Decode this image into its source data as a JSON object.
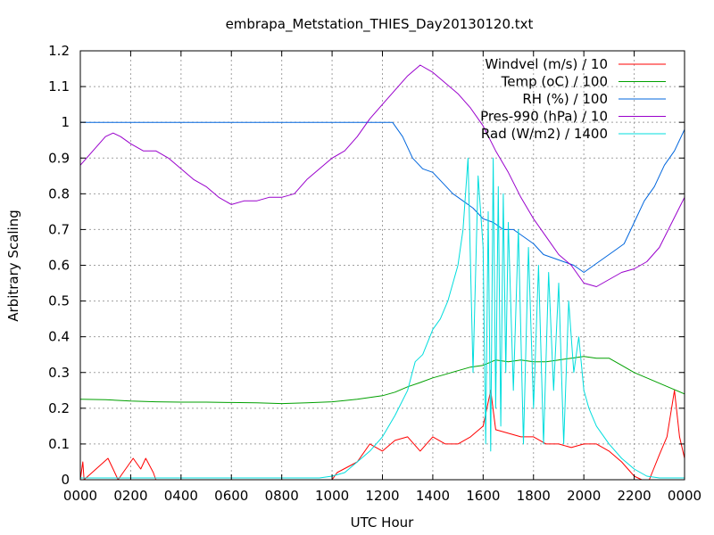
{
  "chart_data": {
    "type": "line",
    "title": "embrapa_Metstation_THIES_Day20130120.txt",
    "xlabel": "UTC Hour",
    "ylabel": "Arbitrary Scaling",
    "xlim": [
      0,
      24
    ],
    "ylim": [
      0,
      1.2
    ],
    "x_ticks": [
      0,
      2,
      4,
      6,
      8,
      10,
      12,
      14,
      16,
      18,
      20,
      22,
      24
    ],
    "x_tick_labels": [
      "0000",
      "0200",
      "0400",
      "0600",
      "0800",
      "1000",
      "1200",
      "1400",
      "1600",
      "1800",
      "2000",
      "2200",
      "0000"
    ],
    "y_ticks": [
      0,
      0.1,
      0.2,
      0.3,
      0.4,
      0.5,
      0.6,
      0.7,
      0.8,
      0.9,
      1,
      1.1,
      1.2
    ],
    "y_tick_labels": [
      "0",
      "0.1",
      "0.2",
      "0.3",
      "0.4",
      "0.5",
      "0.6",
      "0.7",
      "0.8",
      "0.9",
      "1",
      "1.1",
      "1.2"
    ],
    "grid": true,
    "legend_position": "top-right",
    "series": [
      {
        "name": "Windvel (m/s) / 10",
        "color": "#ff0000",
        "x": [
          0,
          0.1,
          0.15,
          1.1,
          1.3,
          1.5,
          2.1,
          2.4,
          2.6,
          2.9,
          3.0,
          5.6,
          5.7,
          9.0,
          10.0,
          10.2,
          11.0,
          11.5,
          12.0,
          12.5,
          13.0,
          13.5,
          14.0,
          14.5,
          15.0,
          15.5,
          16.0,
          16.3,
          16.5,
          17.0,
          17.5,
          18.0,
          18.5,
          19.0,
          19.5,
          20.0,
          20.5,
          21.0,
          21.5,
          22.0,
          22.3,
          22.6,
          23.0,
          23.3,
          23.6,
          23.8,
          24.0
        ],
        "y": [
          0.0,
          0.05,
          0.0,
          0.06,
          0.03,
          0.0,
          0.06,
          0.03,
          0.06,
          0.02,
          0.0,
          0.0,
          0.0,
          0.0,
          0.0,
          0.02,
          0.05,
          0.1,
          0.08,
          0.11,
          0.12,
          0.08,
          0.12,
          0.1,
          0.1,
          0.12,
          0.15,
          0.25,
          0.14,
          0.13,
          0.12,
          0.12,
          0.1,
          0.1,
          0.09,
          0.1,
          0.1,
          0.08,
          0.05,
          0.01,
          0.0,
          0.0,
          0.07,
          0.12,
          0.25,
          0.12,
          0.06
        ]
      },
      {
        "name": "Temp (oC) / 100",
        "color": "#00a000",
        "x": [
          0,
          1,
          2,
          3,
          4,
          5,
          6,
          7,
          8,
          9,
          10,
          11,
          12,
          12.5,
          13,
          13.5,
          14,
          14.5,
          15,
          15.5,
          16,
          16.5,
          17,
          17.5,
          18,
          18.5,
          19,
          19.5,
          20,
          20.5,
          21,
          21.5,
          22,
          22.5,
          23,
          23.5,
          24
        ],
        "y": [
          0.225,
          0.224,
          0.22,
          0.218,
          0.217,
          0.217,
          0.216,
          0.215,
          0.213,
          0.215,
          0.218,
          0.225,
          0.235,
          0.245,
          0.26,
          0.272,
          0.285,
          0.295,
          0.305,
          0.315,
          0.32,
          0.335,
          0.33,
          0.335,
          0.33,
          0.33,
          0.335,
          0.34,
          0.345,
          0.34,
          0.34,
          0.32,
          0.3,
          0.285,
          0.27,
          0.255,
          0.24
        ]
      },
      {
        "name": "RH (%) / 100",
        "color": "#0066dd",
        "x": [
          0,
          2,
          4,
          6,
          8,
          10,
          12,
          12.4,
          12.8,
          13.2,
          13.6,
          14.0,
          14.4,
          14.8,
          15.2,
          15.6,
          16.0,
          16.4,
          16.8,
          17.2,
          17.6,
          18.0,
          18.4,
          18.8,
          19.2,
          19.6,
          20.0,
          20.4,
          20.8,
          21.2,
          21.6,
          22.0,
          22.4,
          22.8,
          23.2,
          23.6,
          24.0
        ],
        "y": [
          1.0,
          1.0,
          1.0,
          1.0,
          1.0,
          1.0,
          1.0,
          1.0,
          0.96,
          0.9,
          0.87,
          0.86,
          0.83,
          0.8,
          0.78,
          0.76,
          0.73,
          0.72,
          0.7,
          0.7,
          0.68,
          0.66,
          0.63,
          0.62,
          0.61,
          0.6,
          0.58,
          0.6,
          0.62,
          0.64,
          0.66,
          0.72,
          0.78,
          0.82,
          0.88,
          0.92,
          0.98
        ]
      },
      {
        "name": "Pres-990 (hPa) / 10",
        "color": "#9900cc",
        "x": [
          0,
          0.5,
          1.0,
          1.3,
          1.6,
          2.0,
          2.5,
          3.0,
          3.5,
          4.0,
          4.5,
          5.0,
          5.5,
          6.0,
          6.5,
          7.0,
          7.5,
          8.0,
          8.5,
          9.0,
          9.5,
          10.0,
          10.5,
          11.0,
          11.5,
          12.0,
          12.5,
          13.0,
          13.5,
          14.0,
          14.5,
          15.0,
          15.5,
          16.0,
          16.5,
          17.0,
          17.5,
          18.0,
          18.5,
          19.0,
          19.5,
          20.0,
          20.5,
          21.0,
          21.5,
          22.0,
          22.5,
          23.0,
          23.5,
          24.0
        ],
        "y": [
          0.88,
          0.92,
          0.96,
          0.97,
          0.96,
          0.94,
          0.92,
          0.92,
          0.9,
          0.87,
          0.84,
          0.82,
          0.79,
          0.77,
          0.78,
          0.78,
          0.79,
          0.79,
          0.8,
          0.84,
          0.87,
          0.9,
          0.92,
          0.96,
          1.01,
          1.05,
          1.09,
          1.13,
          1.16,
          1.14,
          1.11,
          1.08,
          1.04,
          0.99,
          0.92,
          0.86,
          0.79,
          0.73,
          0.68,
          0.63,
          0.6,
          0.55,
          0.54,
          0.56,
          0.58,
          0.59,
          0.61,
          0.65,
          0.72,
          0.79
        ]
      },
      {
        "name": "Rad (W/m2) / 1400",
        "color": "#00dddd",
        "x": [
          0,
          2,
          4,
          6,
          8,
          9.5,
          10.0,
          10.5,
          11.0,
          11.5,
          12.0,
          12.5,
          13.0,
          13.3,
          13.6,
          14.0,
          14.3,
          14.6,
          15.0,
          15.2,
          15.4,
          15.6,
          15.8,
          16.0,
          16.1,
          16.2,
          16.3,
          16.4,
          16.5,
          16.6,
          16.7,
          16.8,
          16.9,
          17.0,
          17.2,
          17.4,
          17.6,
          17.8,
          18.0,
          18.2,
          18.4,
          18.6,
          18.8,
          19.0,
          19.2,
          19.4,
          19.6,
          19.8,
          20.0,
          20.2,
          20.5,
          21.0,
          21.5,
          22.0,
          22.5,
          23.0,
          24.0
        ],
        "y": [
          0.005,
          0.005,
          0.005,
          0.005,
          0.005,
          0.005,
          0.01,
          0.02,
          0.05,
          0.08,
          0.12,
          0.18,
          0.25,
          0.33,
          0.35,
          0.42,
          0.45,
          0.5,
          0.6,
          0.7,
          0.9,
          0.3,
          0.85,
          0.65,
          0.1,
          0.75,
          0.08,
          0.9,
          0.2,
          0.82,
          0.15,
          0.8,
          0.3,
          0.72,
          0.25,
          0.7,
          0.1,
          0.65,
          0.2,
          0.6,
          0.1,
          0.58,
          0.25,
          0.55,
          0.1,
          0.5,
          0.3,
          0.4,
          0.25,
          0.2,
          0.15,
          0.1,
          0.06,
          0.03,
          0.01,
          0.005,
          0.005
        ]
      }
    ]
  }
}
